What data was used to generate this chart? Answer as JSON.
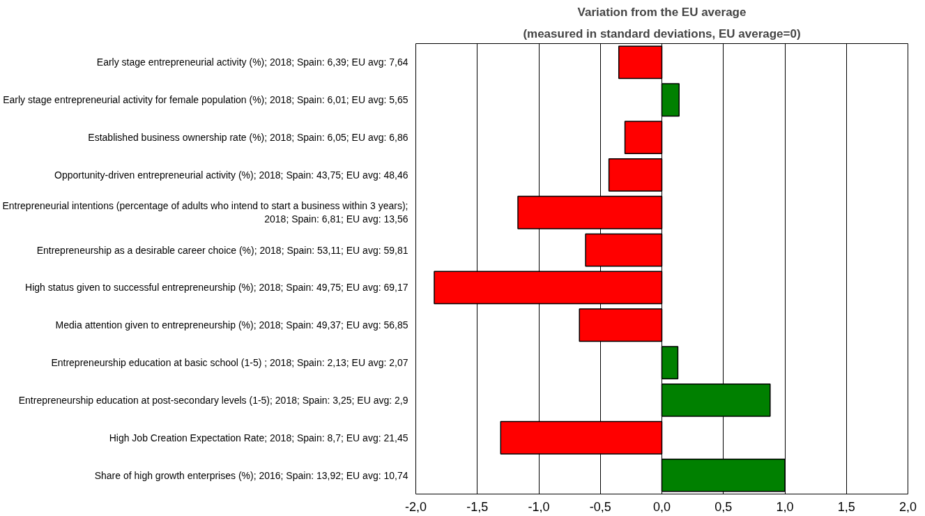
{
  "chart_data": {
    "type": "bar",
    "orientation": "horizontal",
    "title": "Variation from the EU average",
    "subtitle": "(measured in standard deviations, EU average=0)",
    "categories": [
      "Early stage entrepreneurial activity (%); 2018; Spain: 6,39; EU avg: 7,64",
      "Early stage entrepreneurial activity for female population (%); 2018; Spain: 6,01; EU avg: 5,65",
      "Established business ownership rate (%); 2018; Spain: 6,05; EU avg: 6,86",
      "Opportunity-driven entrepreneurial activity (%); 2018; Spain: 43,75; EU avg: 48,46",
      "Entrepreneurial intentions (percentage of adults who intend to start a business within 3 years);\n2018; Spain: 6,81; EU avg: 13,56",
      "Entrepreneurship as a desirable career choice (%); 2018; Spain: 53,11; EU avg: 59,81",
      "High status given to successful entrepreneurship (%); 2018; Spain: 49,75; EU avg: 69,17",
      "Media attention given to entrepreneurship (%); 2018; Spain: 49,37; EU avg: 56,85",
      "Entrepreneurship education at basic school (1-5) ; 2018; Spain: 2,13; EU avg: 2,07",
      "Entrepreneurship education at post-secondary levels (1-5); 2018; Spain: 3,25; EU avg: 2,9",
      "High Job Creation Expectation Rate; 2018; Spain: 8,7; EU avg: 21,45",
      "Share of high growth enterprises (%); 2016; Spain: 13,92; EU avg: 10,74"
    ],
    "values": [
      -0.35,
      0.14,
      -0.3,
      -0.43,
      -1.17,
      -0.62,
      -1.85,
      -0.67,
      0.13,
      0.88,
      -1.31,
      1.0
    ],
    "colors": [
      "#ff0000",
      "#008000",
      "#ff0000",
      "#ff0000",
      "#ff0000",
      "#ff0000",
      "#ff0000",
      "#ff0000",
      "#008000",
      "#008000",
      "#ff0000",
      "#008000"
    ],
    "xlim": [
      -2,
      2
    ],
    "xticks": [
      {
        "value": -2,
        "label": "-2,0"
      },
      {
        "value": -1.5,
        "label": "-1,5"
      },
      {
        "value": -1,
        "label": "-1,0"
      },
      {
        "value": -0.5,
        "label": "-0,5"
      },
      {
        "value": 0,
        "label": "0,0"
      },
      {
        "value": 0.5,
        "label": "0,5"
      },
      {
        "value": 1,
        "label": "1,0"
      },
      {
        "value": 1.5,
        "label": "1,5"
      },
      {
        "value": 2,
        "label": "2,0"
      }
    ],
    "grid": "x"
  }
}
